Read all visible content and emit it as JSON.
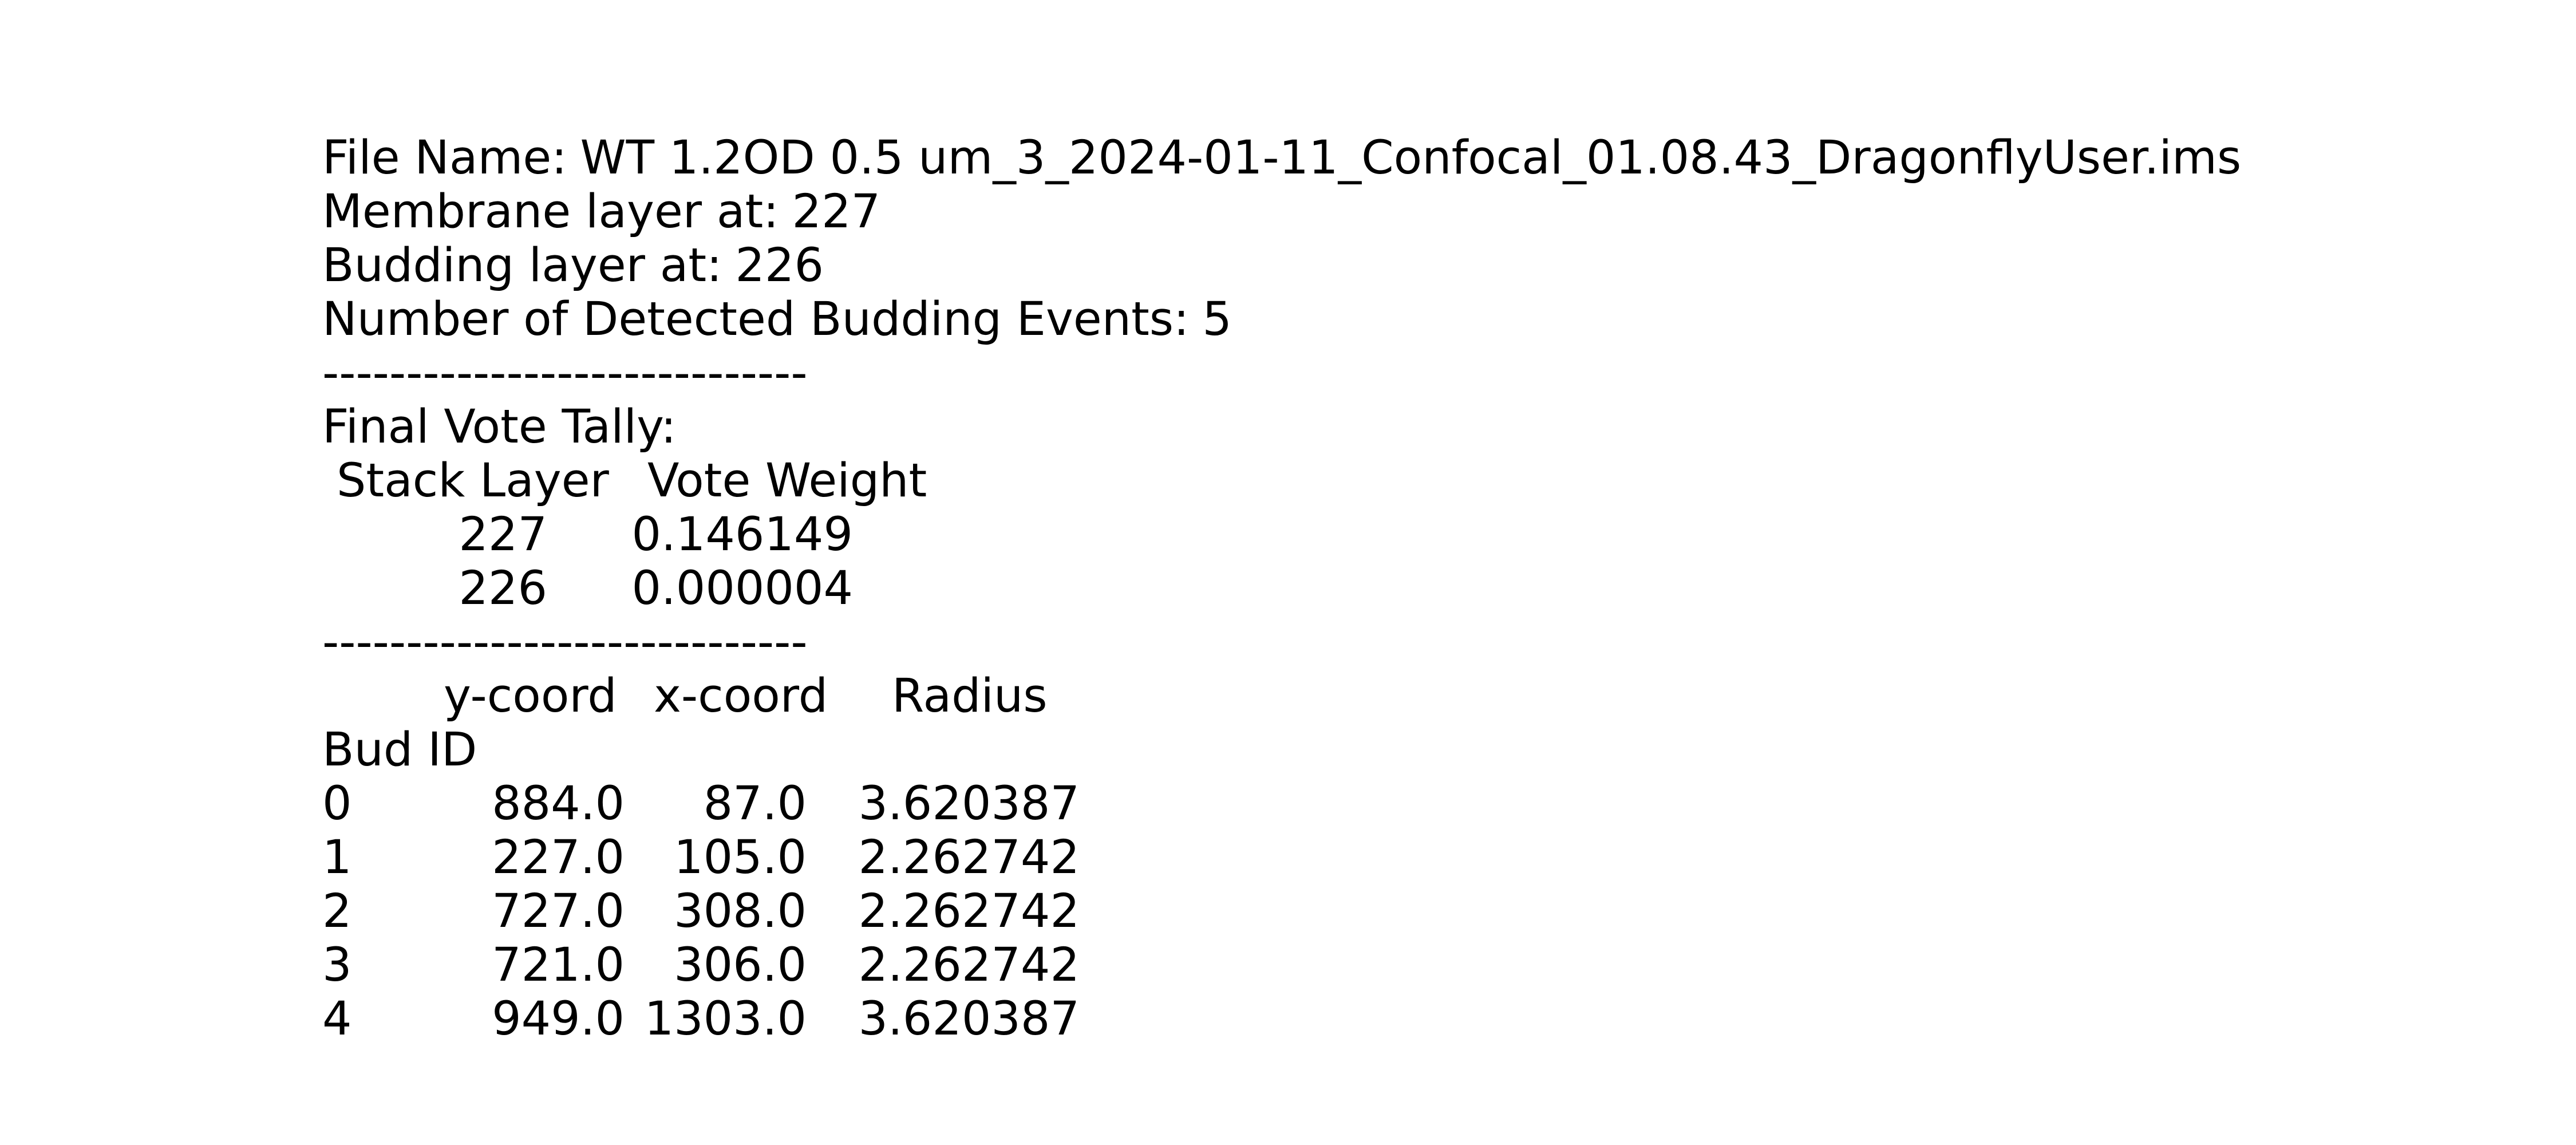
{
  "info": [
    {
      "label": "File Name:",
      "value": "WT 1.2OD 0.5 um_3_2024-01-11_Confocal_01.08.43_DragonflyUser.ims"
    },
    {
      "label": "Membrane layer at:",
      "value": "227"
    },
    {
      "label": "Budding layer at:",
      "value": "226"
    },
    {
      "label": "Number of Detected Budding Events:",
      "value": "5"
    }
  ],
  "separators": [
    "-----------------------------",
    "-----------------------------"
  ],
  "vote_tally": {
    "title": "Final Vote Tally:",
    "columns": [
      "Stack Layer",
      "Vote Weight"
    ],
    "rows": [
      [
        "227",
        "0.146149"
      ],
      [
        "226",
        "0.000004"
      ]
    ]
  },
  "buds": {
    "columns": [
      "y-coord",
      "x-coord",
      "Radius"
    ],
    "index_name": "Bud ID",
    "rows": [
      [
        "0",
        "884.0",
        "87.0",
        "3.620387"
      ],
      [
        "1",
        "227.0",
        "105.0",
        "2.262742"
      ],
      [
        "2",
        "727.0",
        "308.0",
        "2.262742"
      ],
      [
        "3",
        "721.0",
        "306.0",
        "2.262742"
      ],
      [
        "4",
        "949.0",
        "1303.0",
        "3.620387"
      ]
    ]
  }
}
